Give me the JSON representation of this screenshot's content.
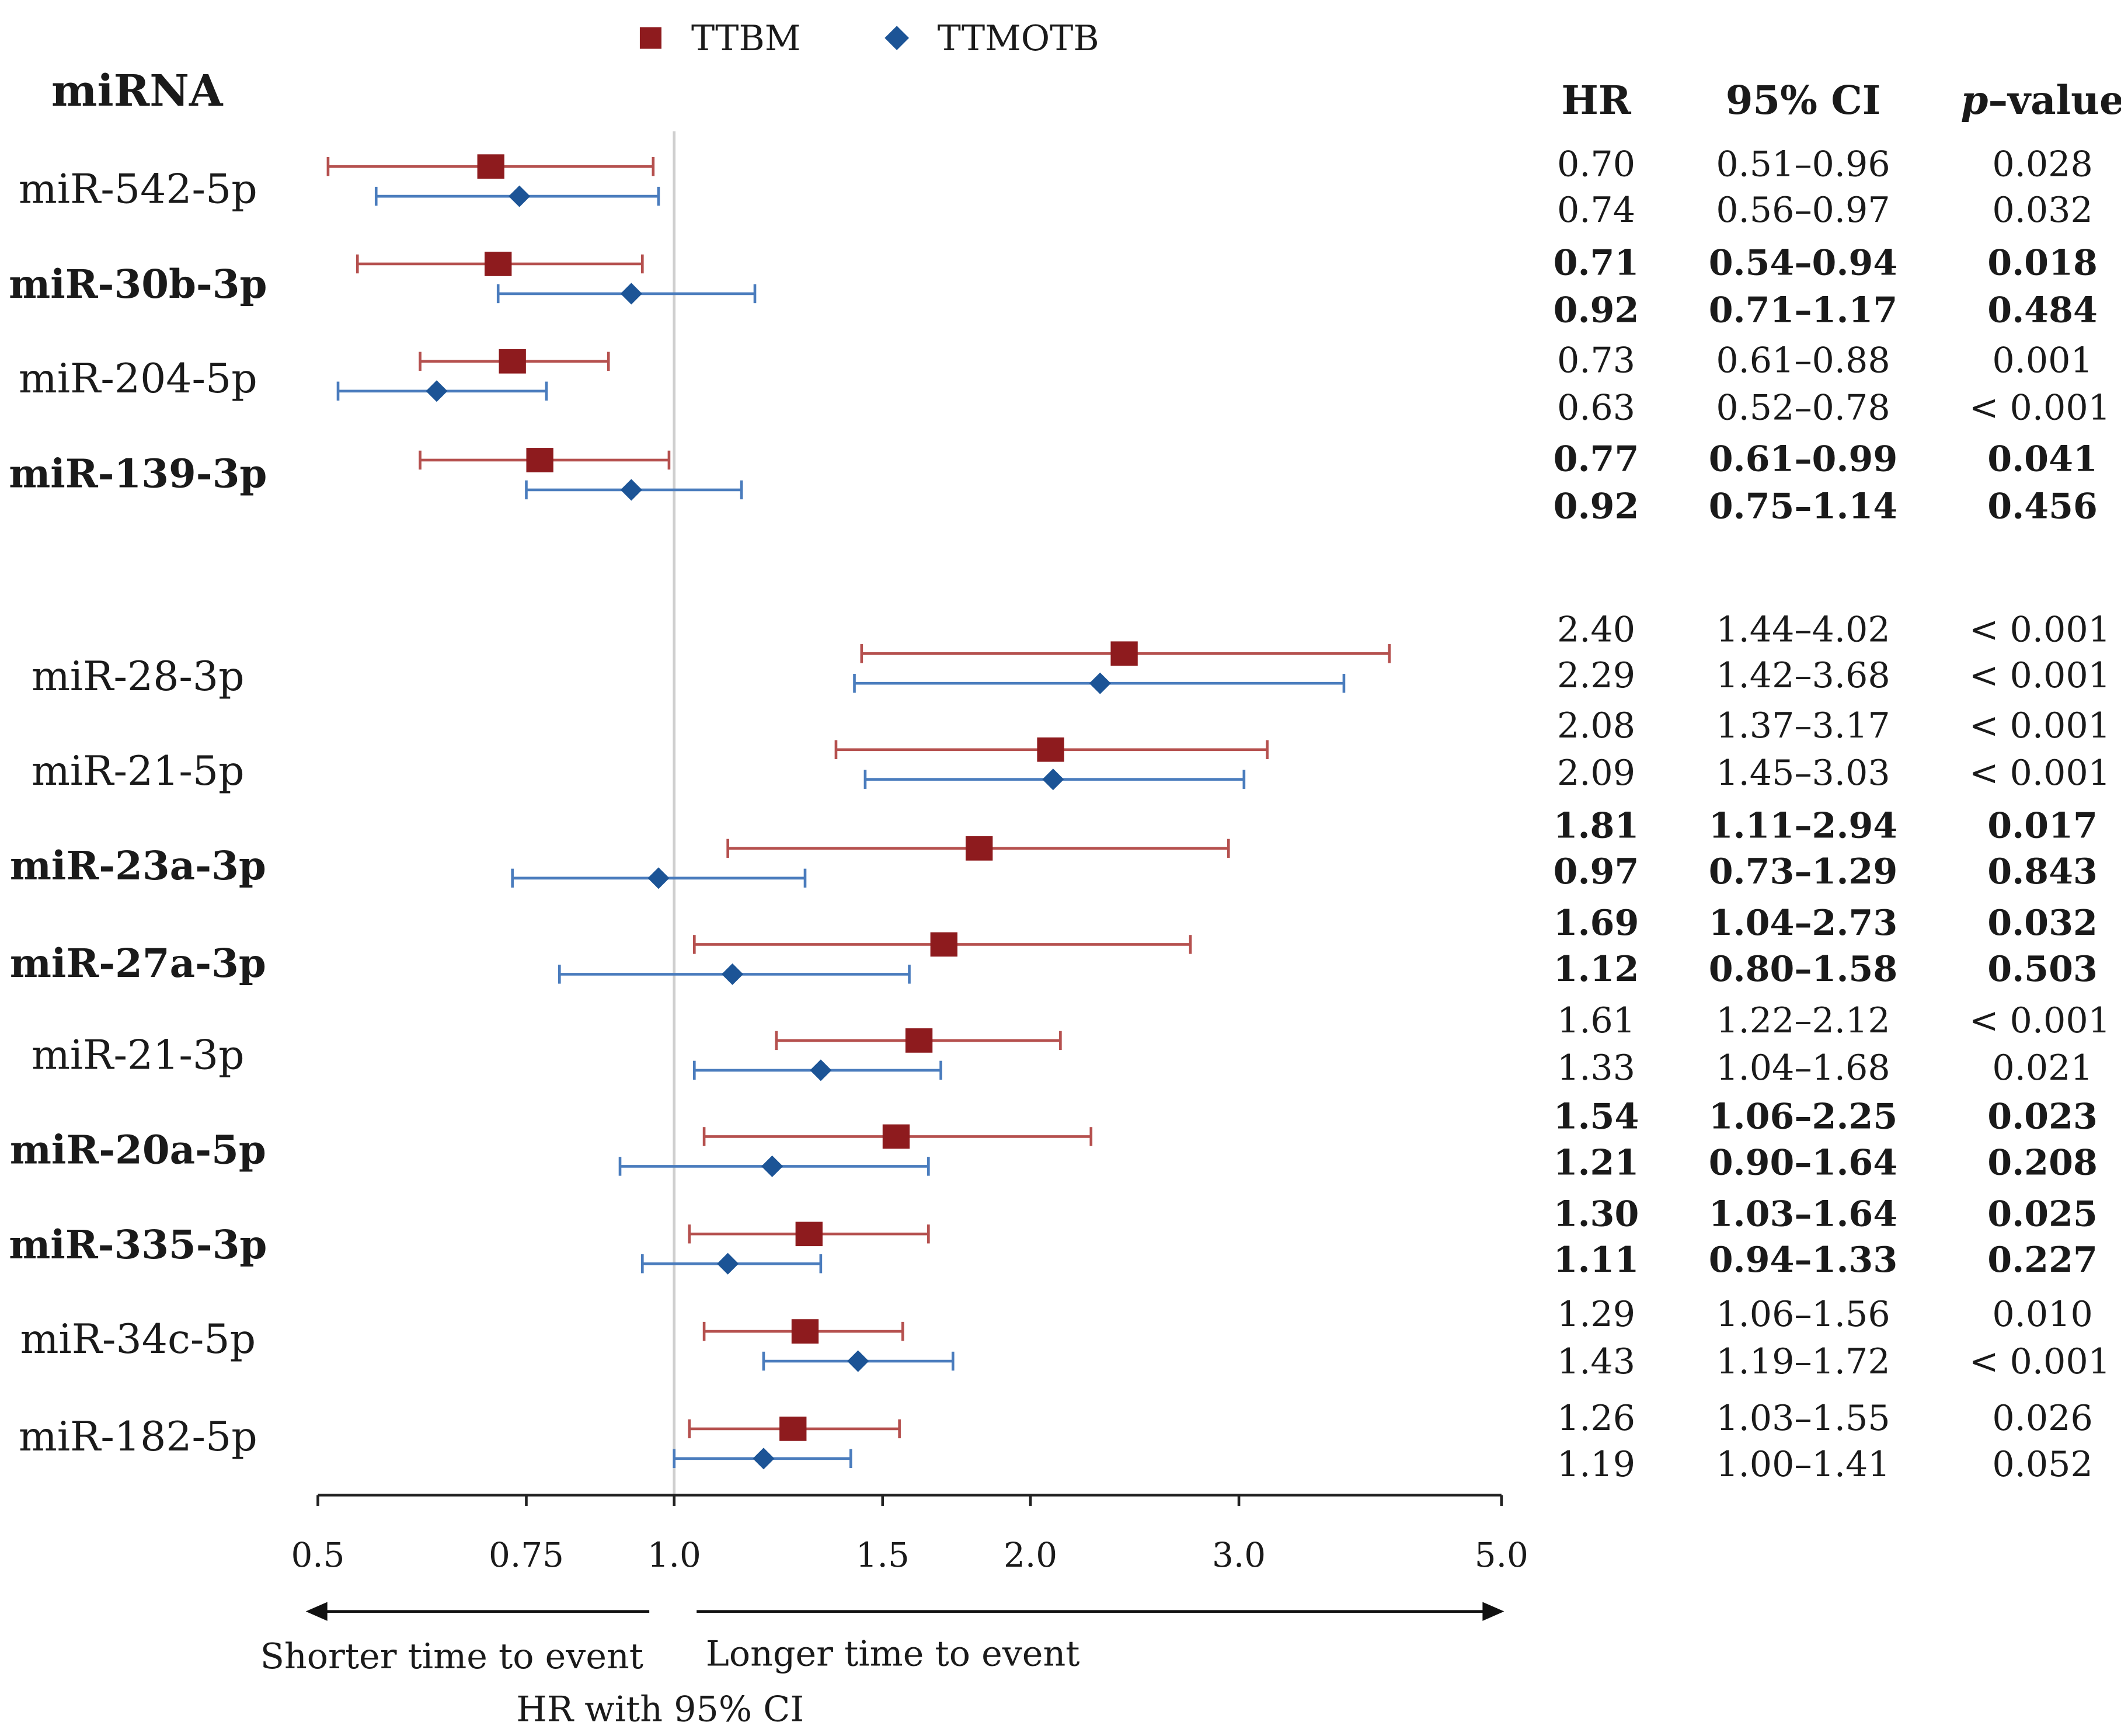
{
  "chart_data": {
    "type": "forest",
    "title": "",
    "xlabel": "HR with 95% CI",
    "x_scale": "log",
    "xlim": [
      0.5,
      5.0
    ],
    "xticks": [
      "0.5",
      "0.75",
      "1.0",
      "1.5",
      "2.0",
      "3.0",
      "5.0"
    ],
    "xtick_values": [
      0.5,
      0.75,
      1.0,
      1.5,
      2.0,
      3.0,
      5.0
    ],
    "reference_line": 1.0,
    "left_arrow_label": "Shorter time to event",
    "right_arrow_label": "Longer time to event",
    "row_header": "miRNA",
    "column_headers": {
      "hr": "HR",
      "ci": "95% CI",
      "p_italic": "p",
      "p_rest": "–value"
    },
    "legend": [
      {
        "name": "TTBM",
        "marker": "square",
        "color": "#8e1b1e"
      },
      {
        "name": "TTMOTB",
        "marker": "diamond",
        "color": "#1c5496"
      }
    ],
    "legend_placement": "top-center",
    "groups": [
      {
        "mirna": "miR-542-5p",
        "bold": false,
        "rows": [
          {
            "series": "TTBM",
            "hr": 0.7,
            "lo": 0.51,
            "hi": 0.96,
            "hr_text": "0.70",
            "ci_text": "0.51–0.96",
            "p_text": "0.028"
          },
          {
            "series": "TTMOTB",
            "hr": 0.74,
            "lo": 0.56,
            "hi": 0.97,
            "hr_text": "0.74",
            "ci_text": "0.56–0.97",
            "p_text": "0.032"
          }
        ]
      },
      {
        "mirna": "miR-30b-3p",
        "bold": true,
        "rows": [
          {
            "series": "TTBM",
            "hr": 0.71,
            "lo": 0.54,
            "hi": 0.94,
            "hr_text": "0.71",
            "ci_text": "0.54–0.94",
            "p_text": "0.018"
          },
          {
            "series": "TTMOTB",
            "hr": 0.92,
            "lo": 0.71,
            "hi": 1.17,
            "hr_text": "0.92",
            "ci_text": "0.71–1.17",
            "p_text": "0.484"
          }
        ]
      },
      {
        "mirna": "miR-204-5p",
        "bold": false,
        "rows": [
          {
            "series": "TTBM",
            "hr": 0.73,
            "lo": 0.61,
            "hi": 0.88,
            "hr_text": "0.73",
            "ci_text": "0.61–0.88",
            "p_text": "0.001"
          },
          {
            "series": "TTMOTB",
            "hr": 0.63,
            "lo": 0.52,
            "hi": 0.78,
            "hr_text": "0.63",
            "ci_text": "0.52–0.78",
            "p_text": "< 0.001"
          }
        ]
      },
      {
        "mirna": "miR-139-3p",
        "bold": true,
        "rows": [
          {
            "series": "TTBM",
            "hr": 0.77,
            "lo": 0.61,
            "hi": 0.99,
            "hr_text": "0.77",
            "ci_text": "0.61–0.99",
            "p_text": "0.041"
          },
          {
            "series": "TTMOTB",
            "hr": 0.92,
            "lo": 0.75,
            "hi": 1.14,
            "hr_text": "0.92",
            "ci_text": "0.75–1.14",
            "p_text": "0.456"
          }
        ]
      },
      {
        "mirna": "miR-28-3p",
        "bold": false,
        "rows": [
          {
            "series": "TTBM",
            "hr": 2.4,
            "lo": 1.44,
            "hi": 4.02,
            "hr_text": "2.40",
            "ci_text": "1.44–4.02",
            "p_text": "< 0.001"
          },
          {
            "series": "TTMOTB",
            "hr": 2.29,
            "lo": 1.42,
            "hi": 3.68,
            "hr_text": "2.29",
            "ci_text": "1.42–3.68",
            "p_text": "< 0.001"
          }
        ]
      },
      {
        "mirna": "miR-21-5p",
        "bold": false,
        "rows": [
          {
            "series": "TTBM",
            "hr": 2.08,
            "lo": 1.37,
            "hi": 3.17,
            "hr_text": "2.08",
            "ci_text": "1.37–3.17",
            "p_text": "< 0.001"
          },
          {
            "series": "TTMOTB",
            "hr": 2.09,
            "lo": 1.45,
            "hi": 3.03,
            "hr_text": "2.09",
            "ci_text": "1.45–3.03",
            "p_text": "< 0.001"
          }
        ]
      },
      {
        "mirna": "miR-23a-3p",
        "bold": true,
        "rows": [
          {
            "series": "TTBM",
            "hr": 1.81,
            "lo": 1.11,
            "hi": 2.94,
            "hr_text": "1.81",
            "ci_text": "1.11–2.94",
            "p_text": "0.017"
          },
          {
            "series": "TTMOTB",
            "hr": 0.97,
            "lo": 0.73,
            "hi": 1.29,
            "hr_text": "0.97",
            "ci_text": "0.73–1.29",
            "p_text": "0.843"
          }
        ]
      },
      {
        "mirna": "miR-27a-3p",
        "bold": true,
        "rows": [
          {
            "series": "TTBM",
            "hr": 1.69,
            "lo": 1.04,
            "hi": 2.73,
            "hr_text": "1.69",
            "ci_text": "1.04–2.73",
            "p_text": "0.032"
          },
          {
            "series": "TTMOTB",
            "hr": 1.12,
            "lo": 0.8,
            "hi": 1.58,
            "hr_text": "1.12",
            "ci_text": "0.80–1.58",
            "p_text": "0.503"
          }
        ]
      },
      {
        "mirna": "miR-21-3p",
        "bold": false,
        "rows": [
          {
            "series": "TTBM",
            "hr": 1.61,
            "lo": 1.22,
            "hi": 2.12,
            "hr_text": "1.61",
            "ci_text": "1.22–2.12",
            "p_text": "< 0.001"
          },
          {
            "series": "TTMOTB",
            "hr": 1.33,
            "lo": 1.04,
            "hi": 1.68,
            "hr_text": "1.33",
            "ci_text": "1.04–1.68",
            "p_text": "0.021"
          }
        ]
      },
      {
        "mirna": "miR-20a-5p",
        "bold": true,
        "rows": [
          {
            "series": "TTBM",
            "hr": 1.54,
            "lo": 1.06,
            "hi": 2.25,
            "hr_text": "1.54",
            "ci_text": "1.06–2.25",
            "p_text": "0.023"
          },
          {
            "series": "TTMOTB",
            "hr": 1.21,
            "lo": 0.9,
            "hi": 1.64,
            "hr_text": "1.21",
            "ci_text": "0.90–1.64",
            "p_text": "0.208"
          }
        ]
      },
      {
        "mirna": "miR-335-3p",
        "bold": true,
        "rows": [
          {
            "series": "TTBM",
            "hr": 1.3,
            "lo": 1.03,
            "hi": 1.64,
            "hr_text": "1.30",
            "ci_text": "1.03–1.64",
            "p_text": "0.025"
          },
          {
            "series": "TTMOTB",
            "hr": 1.11,
            "lo": 0.94,
            "hi": 1.33,
            "hr_text": "1.11",
            "ci_text": "0.94–1.33",
            "p_text": "0.227"
          }
        ]
      },
      {
        "mirna": "miR-34c-5p",
        "bold": false,
        "rows": [
          {
            "series": "TTBM",
            "hr": 1.29,
            "lo": 1.06,
            "hi": 1.56,
            "hr_text": "1.29",
            "ci_text": "1.06–1.56",
            "p_text": "0.010"
          },
          {
            "series": "TTMOTB",
            "hr": 1.43,
            "lo": 1.19,
            "hi": 1.72,
            "hr_text": "1.43",
            "ci_text": "1.19–1.72",
            "p_text": "< 0.001"
          }
        ]
      },
      {
        "mirna": "miR-182-5p",
        "bold": false,
        "rows": [
          {
            "series": "TTBM",
            "hr": 1.26,
            "lo": 1.03,
            "hi": 1.55,
            "hr_text": "1.26",
            "ci_text": "1.03–1.55",
            "p_text": "0.026"
          },
          {
            "series": "TTMOTB",
            "hr": 1.19,
            "lo": 1.0,
            "hi": 1.41,
            "hr_text": "1.19",
            "ci_text": "1.00–1.41",
            "p_text": "0.052"
          }
        ]
      }
    ]
  }
}
